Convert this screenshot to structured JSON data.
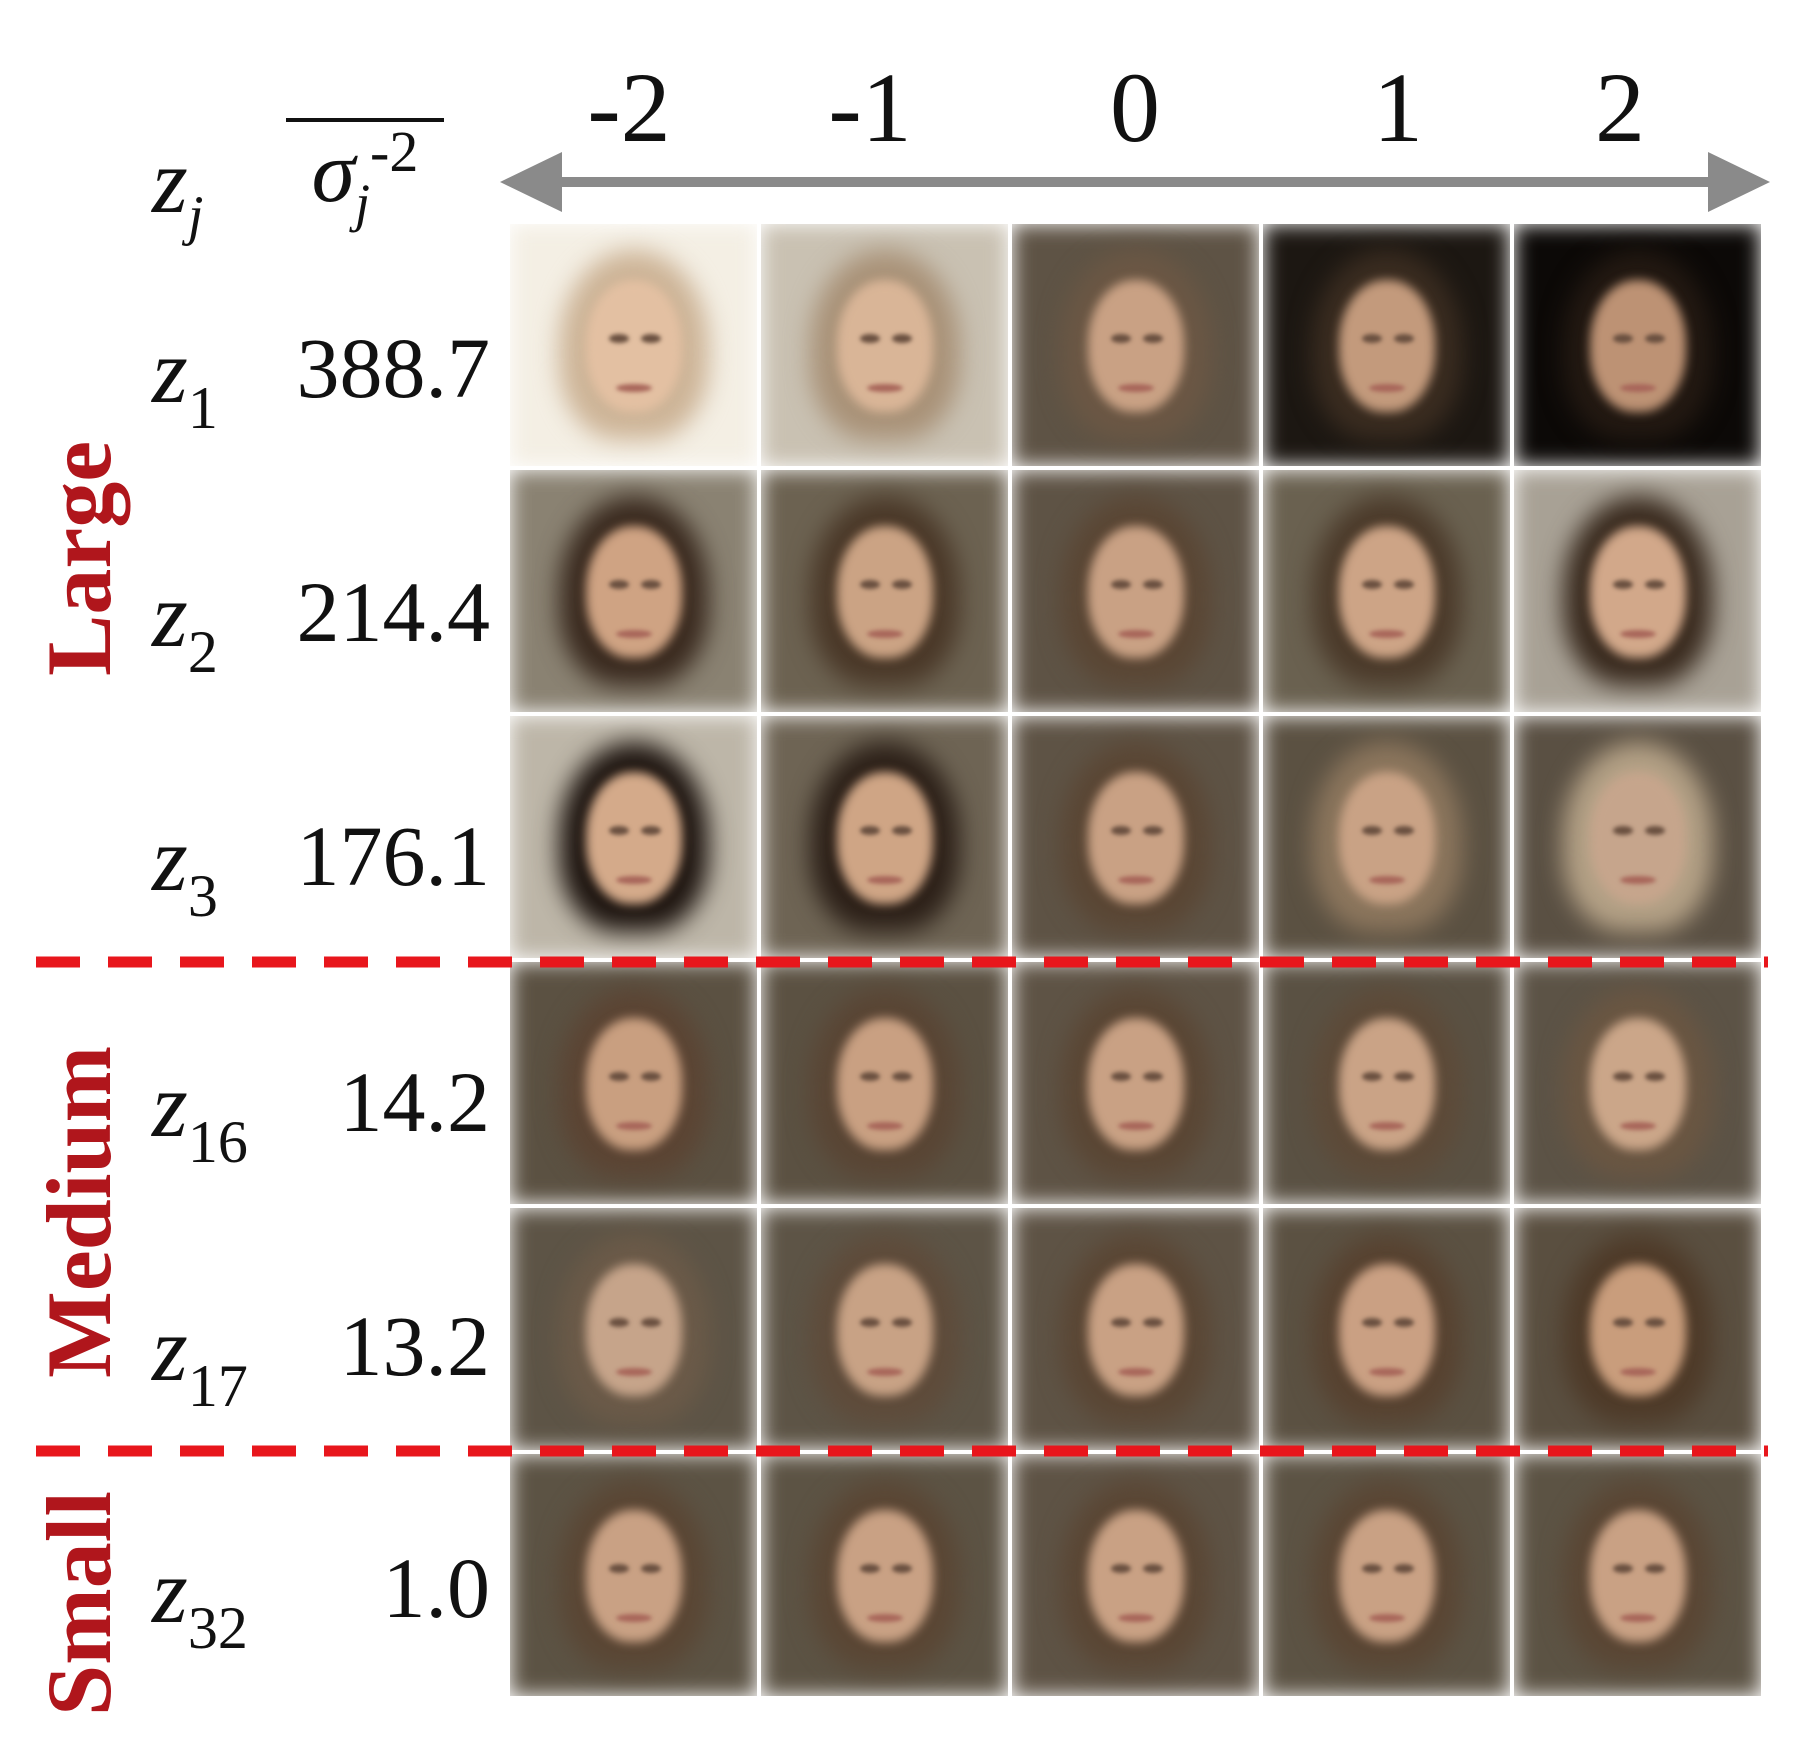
{
  "headers": {
    "var_label": "z",
    "var_sub": "j",
    "sigma_base": "σ",
    "sigma_sub": "j",
    "sigma_sup": "-2"
  },
  "ticks": [
    "-2",
    "-1",
    "0",
    "1",
    "2"
  ],
  "groups": [
    "Large",
    "Medium",
    "Small"
  ],
  "rows": [
    {
      "var": "z",
      "sub": "1",
      "value": "388.7",
      "group": "Large"
    },
    {
      "var": "z",
      "sub": "2",
      "value": "214.4",
      "group": "Large"
    },
    {
      "var": "z",
      "sub": "3",
      "value": "176.1",
      "group": "Large"
    },
    {
      "var": "z",
      "sub": "16",
      "value": "14.2",
      "group": "Medium"
    },
    {
      "var": "z",
      "sub": "17",
      "value": "13.2",
      "group": "Medium"
    },
    {
      "var": "z",
      "sub": "32",
      "value": "1.0",
      "group": "Small"
    }
  ],
  "colors": {
    "arrow": "#8a8a8a",
    "divider": "#e8161c",
    "group_label": "#b0161c"
  },
  "cells": [
    [
      {
        "bg": "#f4efe4",
        "hair": "#cdb497",
        "skin": "#e3c0a2"
      },
      {
        "bg": "#c9c1b2",
        "hair": "#a99278",
        "skin": "#d9b597"
      },
      {
        "bg": "#5e5345",
        "hair": "#6b5744",
        "skin": "#c9a184"
      },
      {
        "bg": "#1c1712",
        "hair": "#3a2c20",
        "skin": "#c39a7c"
      },
      {
        "bg": "#0c0907",
        "hair": "#231912",
        "skin": "#bd9274"
      }
    ],
    [
      {
        "bg": "#8a8272",
        "hair": "#3a2a1f",
        "skin": "#cfa383"
      },
      {
        "bg": "#6c6251",
        "hair": "#4a3828",
        "skin": "#cba384"
      },
      {
        "bg": "#5e5345",
        "hair": "#5a4634",
        "skin": "#c9a184"
      },
      {
        "bg": "#6a6150",
        "hair": "#4b3a2a",
        "skin": "#cda486"
      },
      {
        "bg": "#a8a195",
        "hair": "#3a2b1f",
        "skin": "#d2a88a"
      }
    ],
    [
      {
        "bg": "#bdb6a8",
        "hair": "#1f1611",
        "skin": "#d4aa8a"
      },
      {
        "bg": "#6e6454",
        "hair": "#2c2018",
        "skin": "#cfa585"
      },
      {
        "bg": "#5e5345",
        "hair": "#5a4634",
        "skin": "#c9a184"
      },
      {
        "bg": "#5b5142",
        "hair": "#8c765d",
        "skin": "#c9a285"
      },
      {
        "bg": "#5a5043",
        "hair": "#b4a186",
        "skin": "#c6a58c"
      }
    ],
    [
      {
        "bg": "#5b5142",
        "hair": "#5b4433",
        "skin": "#c99f80"
      },
      {
        "bg": "#5b5142",
        "hair": "#594534",
        "skin": "#c9a082"
      },
      {
        "bg": "#5e5345",
        "hair": "#5a4634",
        "skin": "#c9a184"
      },
      {
        "bg": "#5a5143",
        "hair": "#5d4a38",
        "skin": "#caa386"
      },
      {
        "bg": "#5c5346",
        "hair": "#6a5642",
        "skin": "#cba689"
      }
    ],
    [
      {
        "bg": "#5d5446",
        "hair": "#6b5a48",
        "skin": "#c6a48a"
      },
      {
        "bg": "#5d5446",
        "hair": "#5e4b3a",
        "skin": "#c8a285"
      },
      {
        "bg": "#5e5345",
        "hair": "#5a4634",
        "skin": "#c9a184"
      },
      {
        "bg": "#5b5142",
        "hair": "#574230",
        "skin": "#caa083"
      },
      {
        "bg": "#5a4f40",
        "hair": "#4e3a28",
        "skin": "#c99d7c"
      }
    ],
    [
      {
        "bg": "#5c5344",
        "hair": "#5a4634",
        "skin": "#c9a184"
      },
      {
        "bg": "#5c5344",
        "hair": "#5a4634",
        "skin": "#c9a184"
      },
      {
        "bg": "#5e5345",
        "hair": "#5a4634",
        "skin": "#c9a184"
      },
      {
        "bg": "#5c5344",
        "hair": "#5a4634",
        "skin": "#c9a184"
      },
      {
        "bg": "#5c5344",
        "hair": "#5a4634",
        "skin": "#c9a184"
      }
    ]
  ]
}
